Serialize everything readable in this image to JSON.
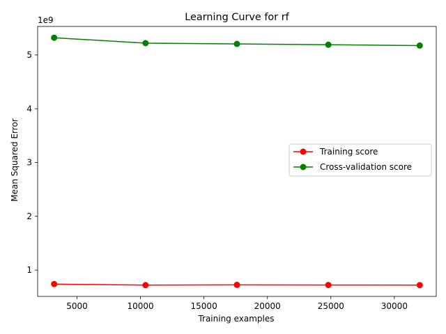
{
  "chart_data": {
    "type": "line",
    "title": "Learning Curve for rf",
    "xlabel": "Training examples",
    "ylabel": "Mean Squared Error",
    "y_offset_label": "1e9",
    "x_ticks": [
      5000,
      10000,
      15000,
      20000,
      25000,
      30000
    ],
    "x_tick_labels": [
      "5000",
      "10000",
      "15000",
      "20000",
      "25000",
      "30000"
    ],
    "y_ticks": [
      1,
      2,
      3,
      4,
      5
    ],
    "y_tick_labels": [
      "1",
      "2",
      "3",
      "4",
      "5"
    ],
    "xlim": [
      1900,
      33300
    ],
    "ylim": [
      0.51,
      5.53
    ],
    "grid": false,
    "legend_position": "center-right",
    "x": [
      3200,
      10400,
      17600,
      24800,
      32000
    ],
    "series": [
      {
        "name": "Training score",
        "color": "#ff0000",
        "marker": "circle",
        "values": [
          0.74,
          0.72,
          0.725,
          0.722,
          0.72
        ]
      },
      {
        "name": "Cross-validation score",
        "color": "#008000",
        "marker": "circle",
        "values": [
          5.32,
          5.22,
          5.205,
          5.19,
          5.175
        ]
      }
    ]
  }
}
